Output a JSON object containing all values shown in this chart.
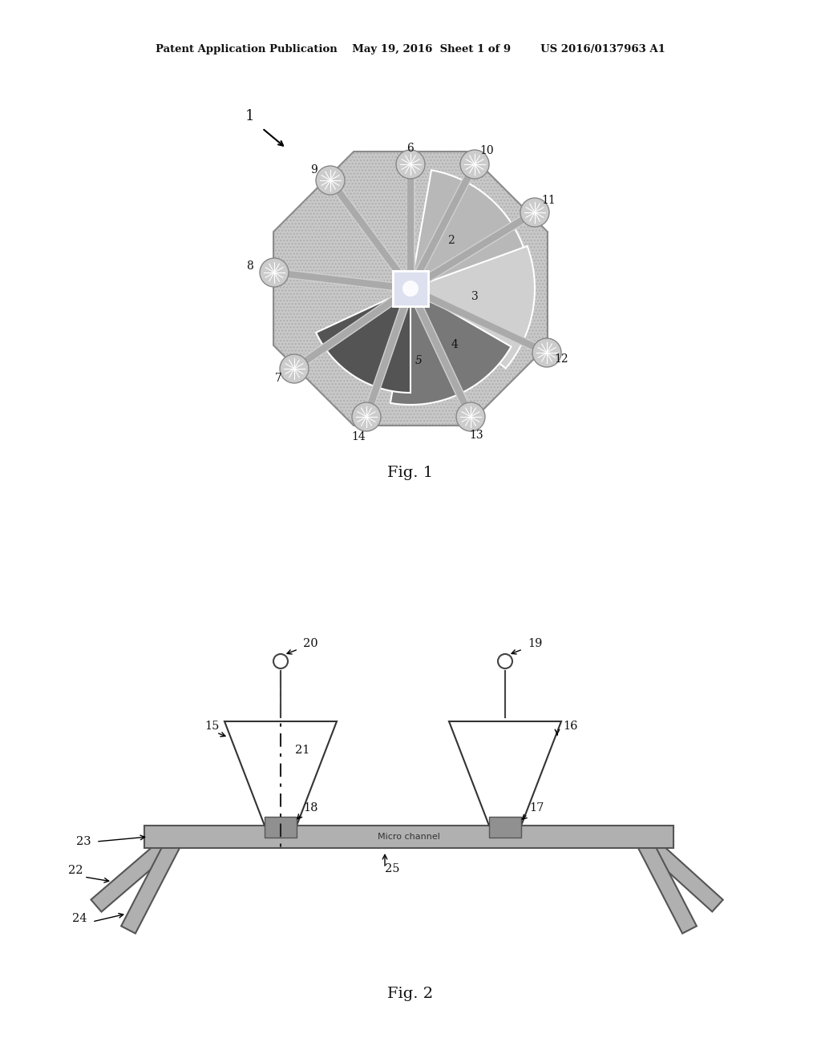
{
  "bg_color": "#ffffff",
  "header_text": "Patent Application Publication    May 19, 2016  Sheet 1 of 9        US 2016/0137963 A1",
  "fig1_caption": "Fig. 1",
  "fig2_caption": "Fig. 2",
  "octagon_color": "#b0b0b0",
  "octagon_edge": "#888888",
  "region2_color": "#a0a0a0",
  "region3_color": "#c0c0c0",
  "region4_color": "#707070",
  "region5_color": "#505050",
  "center_color": "#e8e8e8",
  "microchannel_color": "#a0a0a0",
  "funnel_fill": "#ffffff",
  "funnel_edge": "#333333",
  "channel_color": "#b0b0b0"
}
